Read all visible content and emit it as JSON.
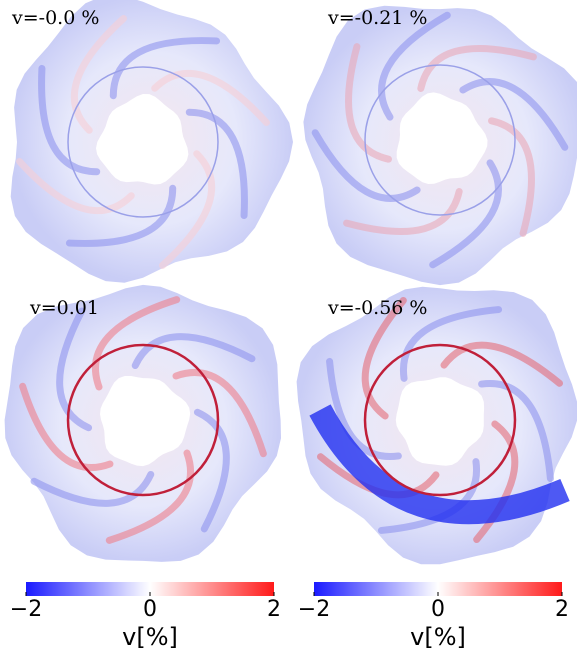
{
  "panels": [
    {
      "label": "v=-0.0 %"
    },
    {
      "label": "v=-0.21 %"
    },
    {
      "label": "v=0.01"
    },
    {
      "label": "v=-0.56 %"
    }
  ],
  "colorbars": [
    {
      "lim": [
        -2,
        2
      ],
      "ticks": [
        {
          "value": -2,
          "label": "−2"
        },
        0,
        2
      ],
      "label": "v[%]"
    },
    {
      "lim": [
        -2,
        2
      ],
      "ticks": [
        {
          "value": -2,
          "label": "−2"
        },
        0,
        2
      ],
      "label": "v[%]"
    }
  ]
}
